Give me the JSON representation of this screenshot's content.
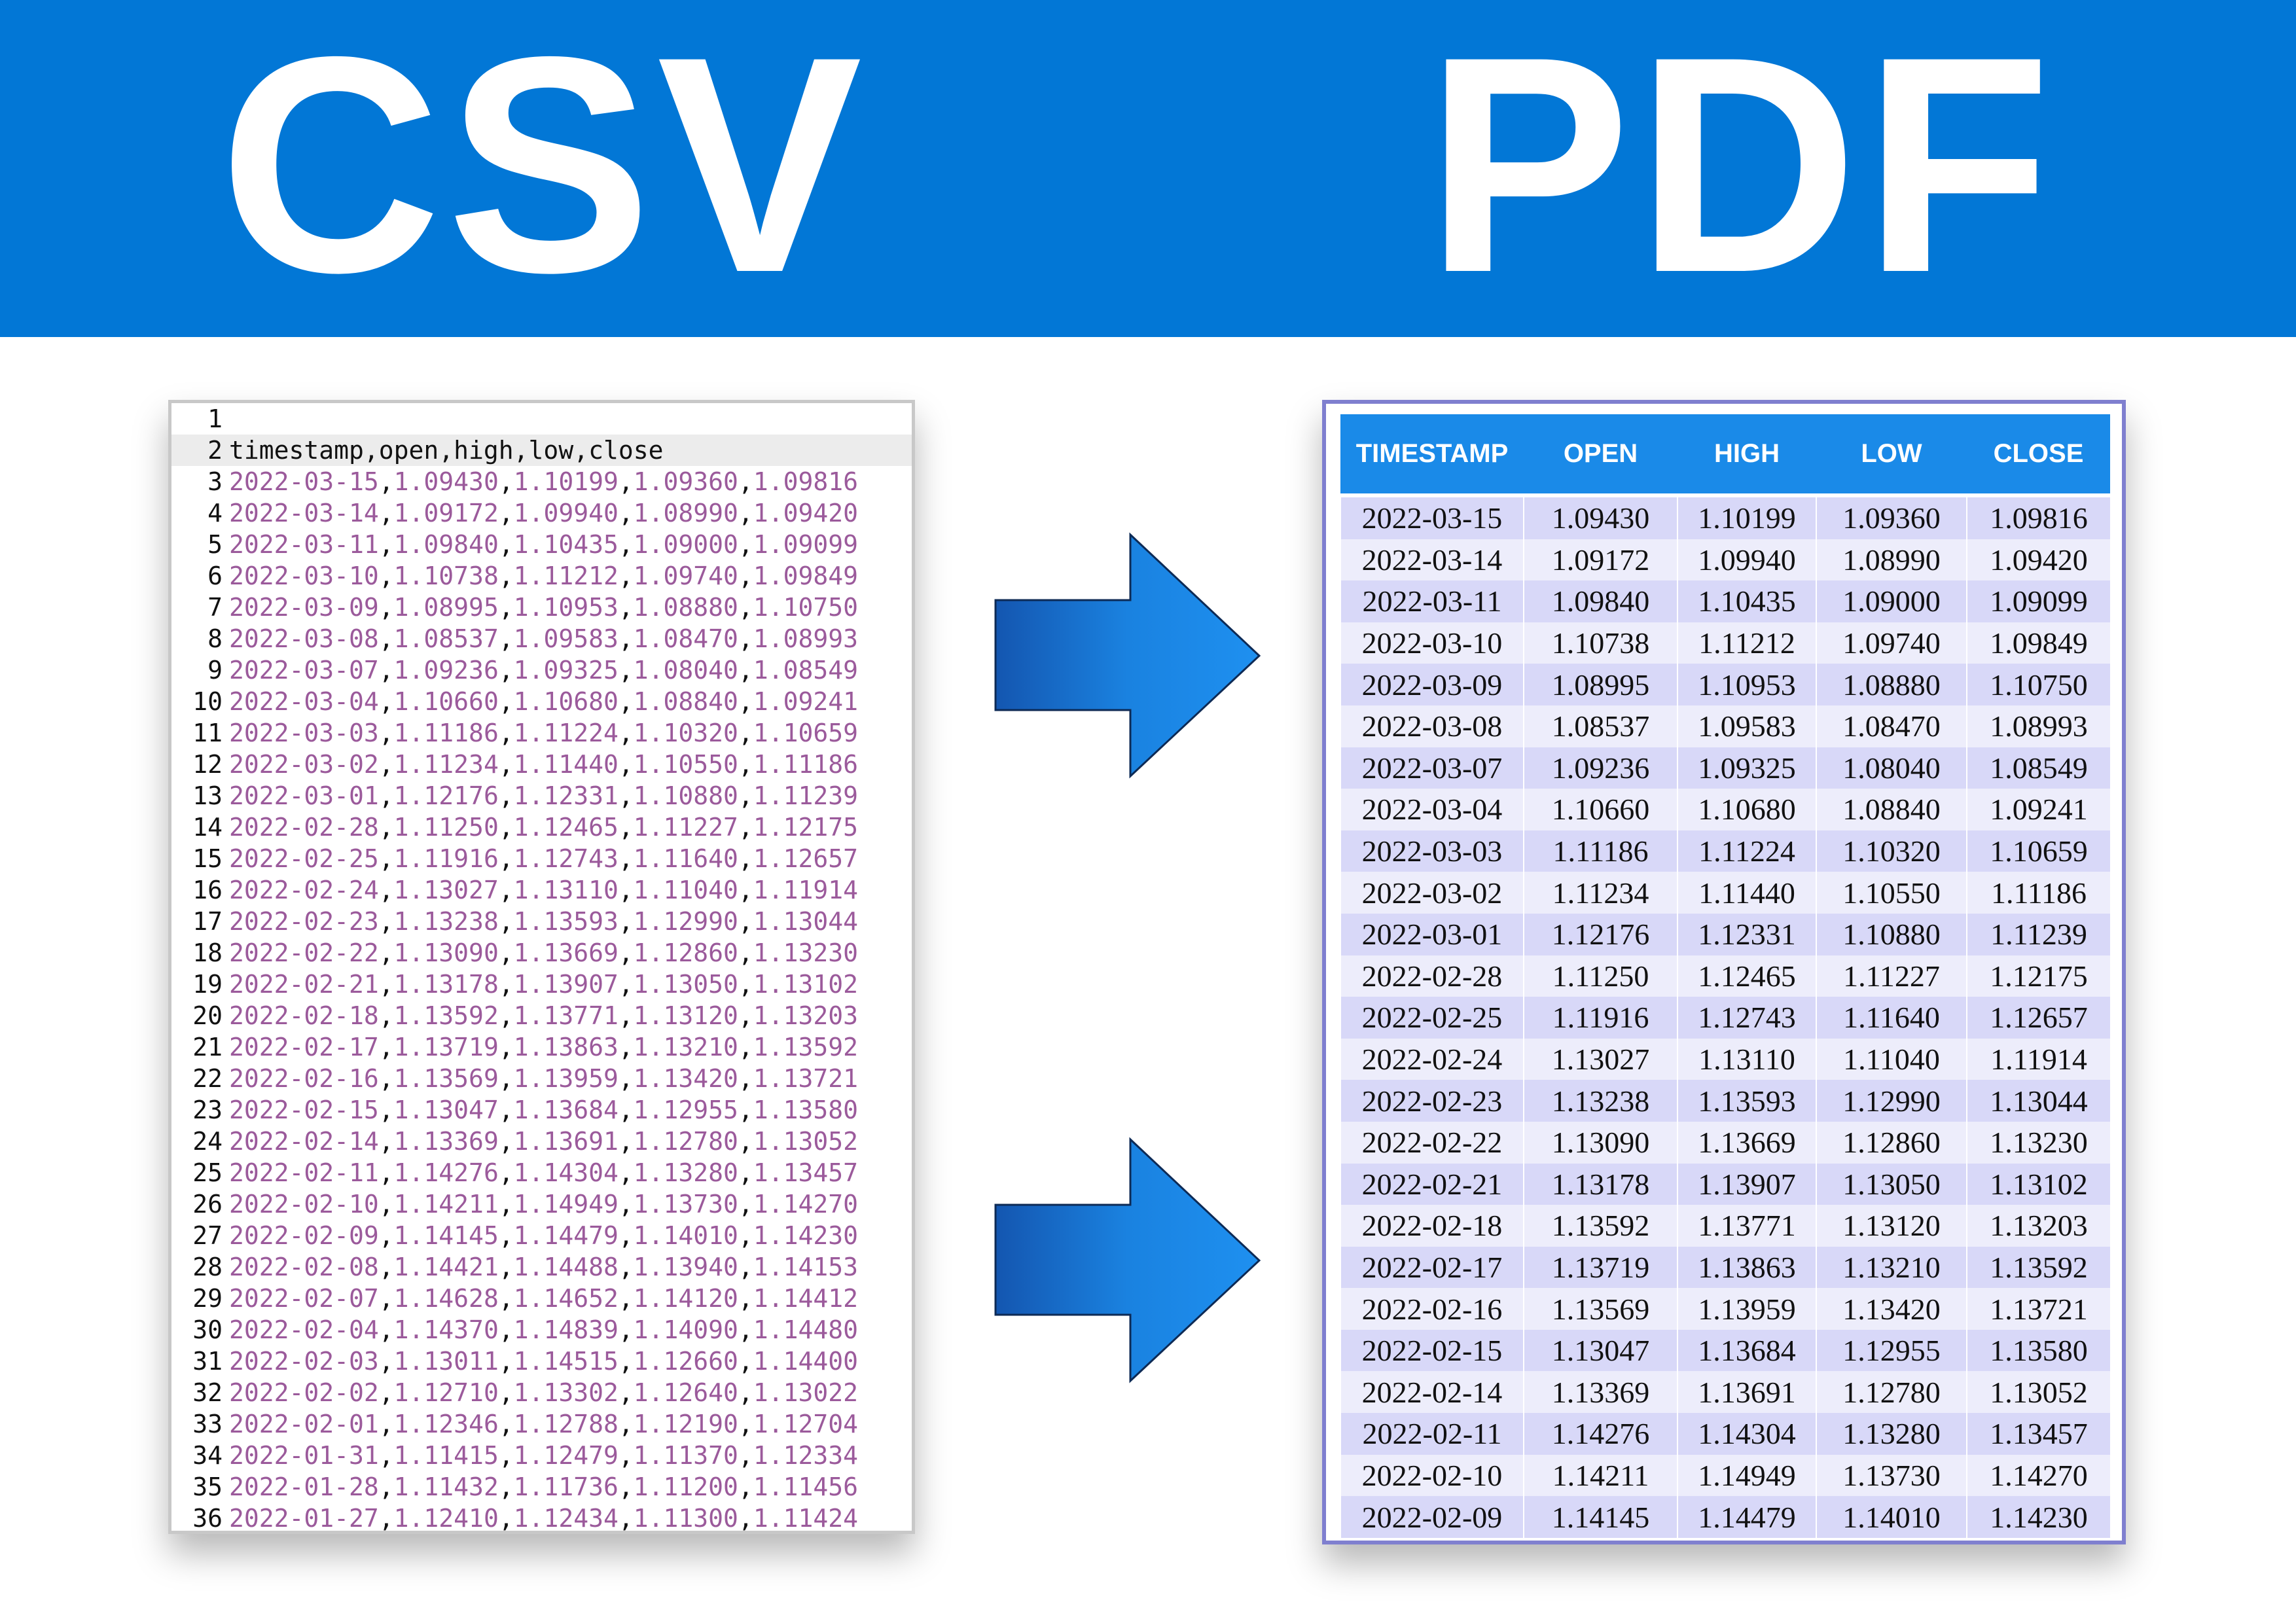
{
  "header": {
    "left": "CSV",
    "right": "PDF"
  },
  "csv": {
    "line_numbers": [
      1,
      2,
      3,
      4,
      5,
      6,
      7,
      8,
      9,
      10,
      11,
      12,
      13,
      14,
      15,
      16,
      17,
      18,
      19,
      20,
      21,
      22,
      23,
      24,
      25,
      26,
      27,
      28,
      29,
      30,
      31,
      32,
      33,
      34,
      35,
      36
    ],
    "header": "timestamp,open,high,low,close",
    "rows": [
      [
        "2022-03-15",
        "1.09430",
        "1.10199",
        "1.09360",
        "1.09816"
      ],
      [
        "2022-03-14",
        "1.09172",
        "1.09940",
        "1.08990",
        "1.09420"
      ],
      [
        "2022-03-11",
        "1.09840",
        "1.10435",
        "1.09000",
        "1.09099"
      ],
      [
        "2022-03-10",
        "1.10738",
        "1.11212",
        "1.09740",
        "1.09849"
      ],
      [
        "2022-03-09",
        "1.08995",
        "1.10953",
        "1.08880",
        "1.10750"
      ],
      [
        "2022-03-08",
        "1.08537",
        "1.09583",
        "1.08470",
        "1.08993"
      ],
      [
        "2022-03-07",
        "1.09236",
        "1.09325",
        "1.08040",
        "1.08549"
      ],
      [
        "2022-03-04",
        "1.10660",
        "1.10680",
        "1.08840",
        "1.09241"
      ],
      [
        "2022-03-03",
        "1.11186",
        "1.11224",
        "1.10320",
        "1.10659"
      ],
      [
        "2022-03-02",
        "1.11234",
        "1.11440",
        "1.10550",
        "1.11186"
      ],
      [
        "2022-03-01",
        "1.12176",
        "1.12331",
        "1.10880",
        "1.11239"
      ],
      [
        "2022-02-28",
        "1.11250",
        "1.12465",
        "1.11227",
        "1.12175"
      ],
      [
        "2022-02-25",
        "1.11916",
        "1.12743",
        "1.11640",
        "1.12657"
      ],
      [
        "2022-02-24",
        "1.13027",
        "1.13110",
        "1.11040",
        "1.11914"
      ],
      [
        "2022-02-23",
        "1.13238",
        "1.13593",
        "1.12990",
        "1.13044"
      ],
      [
        "2022-02-22",
        "1.13090",
        "1.13669",
        "1.12860",
        "1.13230"
      ],
      [
        "2022-02-21",
        "1.13178",
        "1.13907",
        "1.13050",
        "1.13102"
      ],
      [
        "2022-02-18",
        "1.13592",
        "1.13771",
        "1.13120",
        "1.13203"
      ],
      [
        "2022-02-17",
        "1.13719",
        "1.13863",
        "1.13210",
        "1.13592"
      ],
      [
        "2022-02-16",
        "1.13569",
        "1.13959",
        "1.13420",
        "1.13721"
      ],
      [
        "2022-02-15",
        "1.13047",
        "1.13684",
        "1.12955",
        "1.13580"
      ],
      [
        "2022-02-14",
        "1.13369",
        "1.13691",
        "1.12780",
        "1.13052"
      ],
      [
        "2022-02-11",
        "1.14276",
        "1.14304",
        "1.13280",
        "1.13457"
      ],
      [
        "2022-02-10",
        "1.14211",
        "1.14949",
        "1.13730",
        "1.14270"
      ],
      [
        "2022-02-09",
        "1.14145",
        "1.14479",
        "1.14010",
        "1.14230"
      ],
      [
        "2022-02-08",
        "1.14421",
        "1.14488",
        "1.13940",
        "1.14153"
      ],
      [
        "2022-02-07",
        "1.14628",
        "1.14652",
        "1.14120",
        "1.14412"
      ],
      [
        "2022-02-04",
        "1.14370",
        "1.14839",
        "1.14090",
        "1.14480"
      ],
      [
        "2022-02-03",
        "1.13011",
        "1.14515",
        "1.12660",
        "1.14400"
      ],
      [
        "2022-02-02",
        "1.12710",
        "1.13302",
        "1.12640",
        "1.13022"
      ],
      [
        "2022-02-01",
        "1.12346",
        "1.12788",
        "1.12190",
        "1.12704"
      ],
      [
        "2022-01-31",
        "1.11415",
        "1.12479",
        "1.11370",
        "1.12334"
      ],
      [
        "2022-01-28",
        "1.11432",
        "1.11736",
        "1.11200",
        "1.11456"
      ],
      [
        "2022-01-27",
        "1.12410",
        "1.12434",
        "1.11300",
        "1.11424"
      ]
    ]
  },
  "pdf": {
    "columns": [
      "TIMESTAMP",
      "OPEN",
      "HIGH",
      "LOW",
      "CLOSE"
    ],
    "rows": [
      [
        "2022-03-15",
        "1.09430",
        "1.10199",
        "1.09360",
        "1.09816"
      ],
      [
        "2022-03-14",
        "1.09172",
        "1.09940",
        "1.08990",
        "1.09420"
      ],
      [
        "2022-03-11",
        "1.09840",
        "1.10435",
        "1.09000",
        "1.09099"
      ],
      [
        "2022-03-10",
        "1.10738",
        "1.11212",
        "1.09740",
        "1.09849"
      ],
      [
        "2022-03-09",
        "1.08995",
        "1.10953",
        "1.08880",
        "1.10750"
      ],
      [
        "2022-03-08",
        "1.08537",
        "1.09583",
        "1.08470",
        "1.08993"
      ],
      [
        "2022-03-07",
        "1.09236",
        "1.09325",
        "1.08040",
        "1.08549"
      ],
      [
        "2022-03-04",
        "1.10660",
        "1.10680",
        "1.08840",
        "1.09241"
      ],
      [
        "2022-03-03",
        "1.11186",
        "1.11224",
        "1.10320",
        "1.10659"
      ],
      [
        "2022-03-02",
        "1.11234",
        "1.11440",
        "1.10550",
        "1.11186"
      ],
      [
        "2022-03-01",
        "1.12176",
        "1.12331",
        "1.10880",
        "1.11239"
      ],
      [
        "2022-02-28",
        "1.11250",
        "1.12465",
        "1.11227",
        "1.12175"
      ],
      [
        "2022-02-25",
        "1.11916",
        "1.12743",
        "1.11640",
        "1.12657"
      ],
      [
        "2022-02-24",
        "1.13027",
        "1.13110",
        "1.11040",
        "1.11914"
      ],
      [
        "2022-02-23",
        "1.13238",
        "1.13593",
        "1.12990",
        "1.13044"
      ],
      [
        "2022-02-22",
        "1.13090",
        "1.13669",
        "1.12860",
        "1.13230"
      ],
      [
        "2022-02-21",
        "1.13178",
        "1.13907",
        "1.13050",
        "1.13102"
      ],
      [
        "2022-02-18",
        "1.13592",
        "1.13771",
        "1.13120",
        "1.13203"
      ],
      [
        "2022-02-17",
        "1.13719",
        "1.13863",
        "1.13210",
        "1.13592"
      ],
      [
        "2022-02-16",
        "1.13569",
        "1.13959",
        "1.13420",
        "1.13721"
      ],
      [
        "2022-02-15",
        "1.13047",
        "1.13684",
        "1.12955",
        "1.13580"
      ],
      [
        "2022-02-14",
        "1.13369",
        "1.13691",
        "1.12780",
        "1.13052"
      ],
      [
        "2022-02-11",
        "1.14276",
        "1.14304",
        "1.13280",
        "1.13457"
      ],
      [
        "2022-02-10",
        "1.14211",
        "1.14949",
        "1.13730",
        "1.14270"
      ],
      [
        "2022-02-09",
        "1.14145",
        "1.14479",
        "1.14010",
        "1.14230"
      ]
    ]
  }
}
